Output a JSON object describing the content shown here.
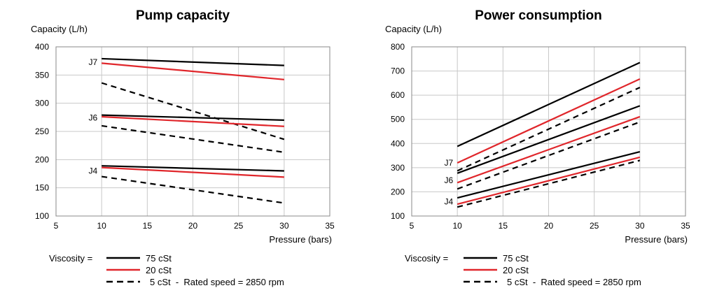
{
  "chart_data": [
    {
      "type": "line",
      "title": "Pump capacity",
      "ylabel": "Capacity (L/h)",
      "xlabel": "Pressure (bars)",
      "xlim": [
        5,
        35
      ],
      "ylim": [
        100,
        400
      ],
      "xticks": [
        5,
        10,
        15,
        20,
        25,
        30,
        35
      ],
      "yticks": [
        100,
        150,
        200,
        250,
        300,
        350,
        400
      ],
      "grid": true,
      "annotations": [
        {
          "text": "J7",
          "x": 10,
          "y": 373
        },
        {
          "text": "J6",
          "x": 10,
          "y": 274
        },
        {
          "text": "J4",
          "x": 10,
          "y": 180
        }
      ],
      "series": [
        {
          "group": "J7",
          "style": "solid-black",
          "x": [
            10,
            30
          ],
          "y": [
            379,
            367
          ]
        },
        {
          "group": "J7",
          "style": "solid-red",
          "x": [
            10,
            30
          ],
          "y": [
            371,
            342
          ]
        },
        {
          "group": "J7",
          "style": "dashed-black",
          "x": [
            10,
            30
          ],
          "y": [
            336,
            236
          ]
        },
        {
          "group": "J6",
          "style": "solid-black",
          "x": [
            10,
            30
          ],
          "y": [
            279,
            270
          ]
        },
        {
          "group": "J6",
          "style": "solid-red",
          "x": [
            10,
            30
          ],
          "y": [
            276,
            259
          ]
        },
        {
          "group": "J6",
          "style": "dashed-black",
          "x": [
            10,
            30
          ],
          "y": [
            260,
            213
          ]
        },
        {
          "group": "J4",
          "style": "solid-black",
          "x": [
            10,
            30
          ],
          "y": [
            189,
            180
          ]
        },
        {
          "group": "J4",
          "style": "solid-red",
          "x": [
            10,
            30
          ],
          "y": [
            186,
            169
          ]
        },
        {
          "group": "J4",
          "style": "dashed-black",
          "x": [
            10,
            30
          ],
          "y": [
            170,
            123
          ]
        }
      ]
    },
    {
      "type": "line",
      "title": "Power consumption",
      "ylabel": "Capacity (L/h)",
      "xlabel": "Pressure (bars)",
      "xlim": [
        5,
        35
      ],
      "ylim": [
        100,
        800
      ],
      "xticks": [
        5,
        10,
        15,
        20,
        25,
        30,
        35
      ],
      "yticks": [
        100,
        200,
        300,
        400,
        500,
        600,
        700,
        800
      ],
      "grid": true,
      "annotations": [
        {
          "text": "J7",
          "x": 10,
          "y": 320
        },
        {
          "text": "J6",
          "x": 10,
          "y": 248
        },
        {
          "text": "J4",
          "x": 10,
          "y": 160
        }
      ],
      "series": [
        {
          "group": "J7",
          "style": "solid-black",
          "x": [
            10,
            30
          ],
          "y": [
            388,
            735
          ]
        },
        {
          "group": "J7",
          "style": "solid-red",
          "x": [
            10,
            30
          ],
          "y": [
            320,
            667
          ]
        },
        {
          "group": "J7",
          "style": "dashed-black",
          "x": [
            10,
            30
          ],
          "y": [
            287,
            632
          ]
        },
        {
          "group": "J6",
          "style": "solid-black",
          "x": [
            10,
            30
          ],
          "y": [
            277,
            556
          ]
        },
        {
          "group": "J6",
          "style": "solid-red",
          "x": [
            10,
            30
          ],
          "y": [
            238,
            511
          ]
        },
        {
          "group": "J6",
          "style": "dashed-black",
          "x": [
            10,
            30
          ],
          "y": [
            212,
            489
          ]
        },
        {
          "group": "J4",
          "style": "solid-black",
          "x": [
            10,
            30
          ],
          "y": [
            175,
            366
          ]
        },
        {
          "group": "J4",
          "style": "solid-red",
          "x": [
            10,
            30
          ],
          "y": [
            149,
            343
          ]
        },
        {
          "group": "J4",
          "style": "dashed-black",
          "x": [
            10,
            30
          ],
          "y": [
            137,
            330
          ]
        }
      ]
    }
  ],
  "legend": {
    "prefix": "Viscosity =",
    "items": [
      {
        "style": "solid-black",
        "label": "75 cSt"
      },
      {
        "style": "solid-red",
        "label": "20 cSt"
      },
      {
        "style": "dashed-black",
        "label": "5 cSt  -  Rated speed = 2850 rpm"
      }
    ]
  },
  "colors": {
    "black": "#000000",
    "red": "#e0262b",
    "grid": "#c8c8c8"
  }
}
